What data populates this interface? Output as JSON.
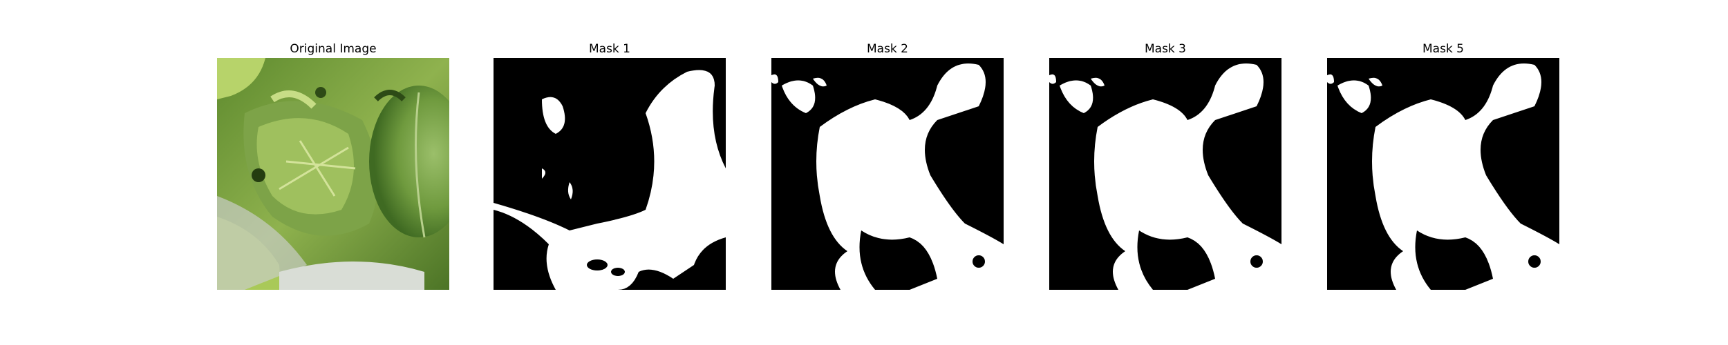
{
  "figure": {
    "panels": [
      {
        "title": "Original Image"
      },
      {
        "title": "Mask 1"
      },
      {
        "title": "Mask 2"
      },
      {
        "title": "Mask 3"
      },
      {
        "title": "Mask 5"
      }
    ]
  }
}
